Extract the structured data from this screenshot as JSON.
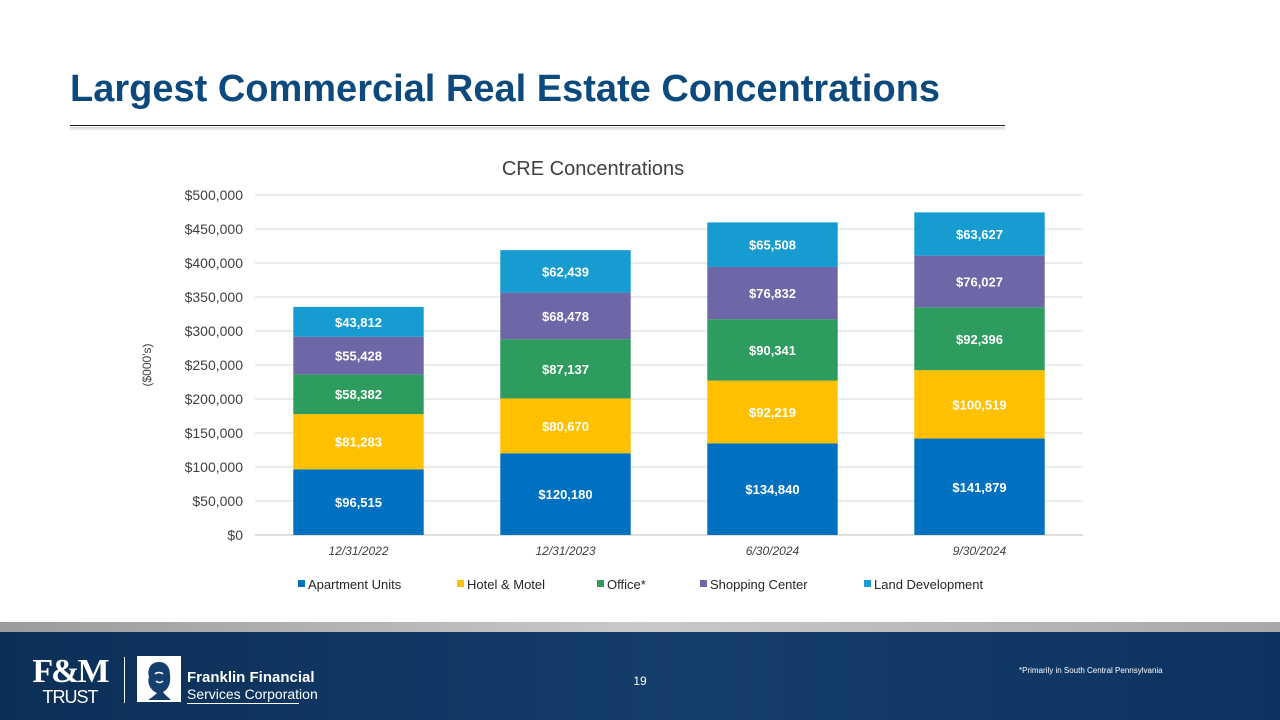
{
  "slide": {
    "title": "Largest Commercial Real Estate Concentrations",
    "page_number": "19",
    "footnote": "*Primarily in South Central Pennsylvania"
  },
  "branding": {
    "fm_logo_text": "F&M",
    "fm_logo_subtext": "TRUST",
    "company_name_line1": "Franklin Financial",
    "company_name_line2": "Services Corporation"
  },
  "colors": {
    "title": "#0c4a7e",
    "footer": "#0b2f57",
    "series": [
      "#0070c0",
      "#ffc000",
      "#2e9b5f",
      "#6e67a7",
      "#169cd0"
    ]
  },
  "chart_data": {
    "type": "bar",
    "stacked": true,
    "title": "CRE Concentrations",
    "xlabel": "",
    "ylabel": "($000's)",
    "ylim": [
      0,
      500000
    ],
    "ytick_step": 50000,
    "ytick_labels": [
      "$0",
      "$50,000",
      "$100,000",
      "$150,000",
      "$200,000",
      "$250,000",
      "$300,000",
      "$350,000",
      "$400,000",
      "$450,000",
      "$500,000"
    ],
    "grid": true,
    "legend": "bottom",
    "categories": [
      "12/31/2022",
      "12/31/2023",
      "6/30/2024",
      "9/30/2024"
    ],
    "series": [
      {
        "name": "Apartment Units",
        "values": [
          96515,
          120180,
          134840,
          141879
        ],
        "labels": [
          "$96,515",
          "$120,180",
          "$134,840",
          "$141,879"
        ]
      },
      {
        "name": "Hotel & Motel",
        "values": [
          81283,
          80670,
          92219,
          100519
        ],
        "labels": [
          "$81,283",
          "$80,670",
          "$92,219",
          "$100,519"
        ]
      },
      {
        "name": "Office*",
        "values": [
          58382,
          87137,
          90341,
          92396
        ],
        "labels": [
          "$58,382",
          "$87,137",
          "$90,341",
          "$92,396"
        ]
      },
      {
        "name": "Shopping Center",
        "values": [
          55428,
          68478,
          76832,
          76027
        ],
        "labels": [
          "$55,428",
          "$68,478",
          "$76,832",
          "$76,027"
        ]
      },
      {
        "name": "Land Development",
        "values": [
          43812,
          62439,
          65508,
          63627
        ],
        "labels": [
          "$43,812",
          "$62,439",
          "$65,508",
          "$63,627"
        ]
      }
    ]
  }
}
